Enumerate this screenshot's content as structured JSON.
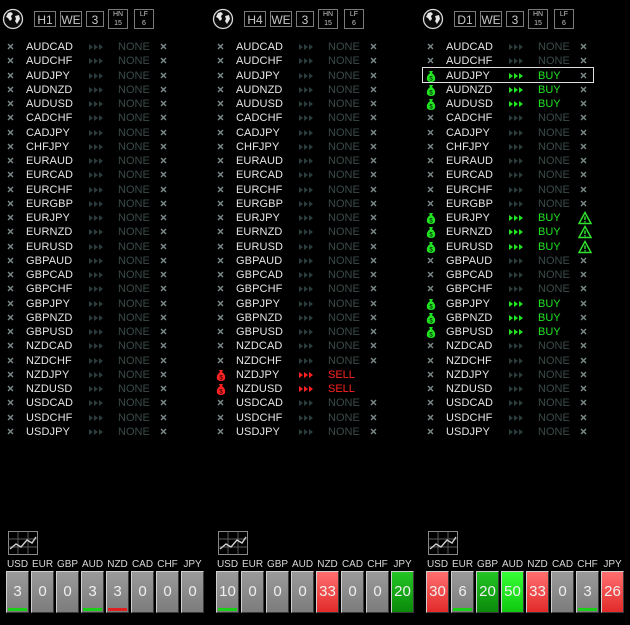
{
  "panels": [
    {
      "timeframe": "H1",
      "buttons": [
        "WE",
        "3"
      ],
      "hn": [
        "HN",
        "15"
      ],
      "lf": [
        "LF",
        "6"
      ],
      "rows": [
        {
          "pair": "AUDCAD",
          "signal": "NONE",
          "dir": "none"
        },
        {
          "pair": "AUDCHF",
          "signal": "NONE",
          "dir": "none"
        },
        {
          "pair": "AUDJPY",
          "signal": "NONE",
          "dir": "none"
        },
        {
          "pair": "AUDNZD",
          "signal": "NONE",
          "dir": "none"
        },
        {
          "pair": "AUDUSD",
          "signal": "NONE",
          "dir": "none"
        },
        {
          "pair": "CADCHF",
          "signal": "NONE",
          "dir": "none"
        },
        {
          "pair": "CADJPY",
          "signal": "NONE",
          "dir": "none"
        },
        {
          "pair": "CHFJPY",
          "signal": "NONE",
          "dir": "none"
        },
        {
          "pair": "EURAUD",
          "signal": "NONE",
          "dir": "none"
        },
        {
          "pair": "EURCAD",
          "signal": "NONE",
          "dir": "none"
        },
        {
          "pair": "EURCHF",
          "signal": "NONE",
          "dir": "none"
        },
        {
          "pair": "EURGBP",
          "signal": "NONE",
          "dir": "none"
        },
        {
          "pair": "EURJPY",
          "signal": "NONE",
          "dir": "none"
        },
        {
          "pair": "EURNZD",
          "signal": "NONE",
          "dir": "none"
        },
        {
          "pair": "EURUSD",
          "signal": "NONE",
          "dir": "none"
        },
        {
          "pair": "GBPAUD",
          "signal": "NONE",
          "dir": "none"
        },
        {
          "pair": "GBPCAD",
          "signal": "NONE",
          "dir": "none"
        },
        {
          "pair": "GBPCHF",
          "signal": "NONE",
          "dir": "none"
        },
        {
          "pair": "GBPJPY",
          "signal": "NONE",
          "dir": "none"
        },
        {
          "pair": "GBPNZD",
          "signal": "NONE",
          "dir": "none"
        },
        {
          "pair": "GBPUSD",
          "signal": "NONE",
          "dir": "none"
        },
        {
          "pair": "NZDCAD",
          "signal": "NONE",
          "dir": "none"
        },
        {
          "pair": "NZDCHF",
          "signal": "NONE",
          "dir": "none"
        },
        {
          "pair": "NZDJPY",
          "signal": "NONE",
          "dir": "none"
        },
        {
          "pair": "NZDUSD",
          "signal": "NONE",
          "dir": "none"
        },
        {
          "pair": "USDCAD",
          "signal": "NONE",
          "dir": "none"
        },
        {
          "pair": "USDCHF",
          "signal": "NONE",
          "dir": "none"
        },
        {
          "pair": "USDJPY",
          "signal": "NONE",
          "dir": "none"
        }
      ],
      "currencies": [
        {
          "code": "USD",
          "value": "3",
          "style": "gray",
          "bar": "green"
        },
        {
          "code": "EUR",
          "value": "0",
          "style": "gray",
          "bar": ""
        },
        {
          "code": "GBP",
          "value": "0",
          "style": "gray",
          "bar": ""
        },
        {
          "code": "AUD",
          "value": "3",
          "style": "gray",
          "bar": "green"
        },
        {
          "code": "NZD",
          "value": "3",
          "style": "gray",
          "bar": "red"
        },
        {
          "code": "CAD",
          "value": "0",
          "style": "gray",
          "bar": ""
        },
        {
          "code": "CHF",
          "value": "0",
          "style": "gray",
          "bar": ""
        },
        {
          "code": "JPY",
          "value": "0",
          "style": "gray",
          "bar": ""
        }
      ]
    },
    {
      "timeframe": "H4",
      "buttons": [
        "WE",
        "3"
      ],
      "hn": [
        "HN",
        "15"
      ],
      "lf": [
        "LF",
        "6"
      ],
      "rows": [
        {
          "pair": "AUDCAD",
          "signal": "NONE",
          "dir": "none"
        },
        {
          "pair": "AUDCHF",
          "signal": "NONE",
          "dir": "none"
        },
        {
          "pair": "AUDJPY",
          "signal": "NONE",
          "dir": "none"
        },
        {
          "pair": "AUDNZD",
          "signal": "NONE",
          "dir": "none"
        },
        {
          "pair": "AUDUSD",
          "signal": "NONE",
          "dir": "none"
        },
        {
          "pair": "CADCHF",
          "signal": "NONE",
          "dir": "none"
        },
        {
          "pair": "CADJPY",
          "signal": "NONE",
          "dir": "none"
        },
        {
          "pair": "CHFJPY",
          "signal": "NONE",
          "dir": "none"
        },
        {
          "pair": "EURAUD",
          "signal": "NONE",
          "dir": "none"
        },
        {
          "pair": "EURCAD",
          "signal": "NONE",
          "dir": "none"
        },
        {
          "pair": "EURCHF",
          "signal": "NONE",
          "dir": "none"
        },
        {
          "pair": "EURGBP",
          "signal": "NONE",
          "dir": "none"
        },
        {
          "pair": "EURJPY",
          "signal": "NONE",
          "dir": "none"
        },
        {
          "pair": "EURNZD",
          "signal": "NONE",
          "dir": "none"
        },
        {
          "pair": "EURUSD",
          "signal": "NONE",
          "dir": "none"
        },
        {
          "pair": "GBPAUD",
          "signal": "NONE",
          "dir": "none"
        },
        {
          "pair": "GBPCAD",
          "signal": "NONE",
          "dir": "none"
        },
        {
          "pair": "GBPCHF",
          "signal": "NONE",
          "dir": "none"
        },
        {
          "pair": "GBPJPY",
          "signal": "NONE",
          "dir": "none"
        },
        {
          "pair": "GBPNZD",
          "signal": "NONE",
          "dir": "none"
        },
        {
          "pair": "GBPUSD",
          "signal": "NONE",
          "dir": "none"
        },
        {
          "pair": "NZDCAD",
          "signal": "NONE",
          "dir": "none"
        },
        {
          "pair": "NZDCHF",
          "signal": "NONE",
          "dir": "none"
        },
        {
          "pair": "NZDJPY",
          "signal": "SELL",
          "dir": "sell"
        },
        {
          "pair": "NZDUSD",
          "signal": "SELL",
          "dir": "sell"
        },
        {
          "pair": "USDCAD",
          "signal": "NONE",
          "dir": "none"
        },
        {
          "pair": "USDCHF",
          "signal": "NONE",
          "dir": "none"
        },
        {
          "pair": "USDJPY",
          "signal": "NONE",
          "dir": "none"
        }
      ],
      "currencies": [
        {
          "code": "USD",
          "value": "10",
          "style": "gray",
          "bar": "green"
        },
        {
          "code": "EUR",
          "value": "0",
          "style": "gray",
          "bar": ""
        },
        {
          "code": "GBP",
          "value": "0",
          "style": "gray",
          "bar": ""
        },
        {
          "code": "AUD",
          "value": "0",
          "style": "gray",
          "bar": ""
        },
        {
          "code": "NZD",
          "value": "33",
          "style": "red",
          "bar": ""
        },
        {
          "code": "CAD",
          "value": "0",
          "style": "gray",
          "bar": ""
        },
        {
          "code": "CHF",
          "value": "0",
          "style": "gray",
          "bar": ""
        },
        {
          "code": "JPY",
          "value": "20",
          "style": "green",
          "bar": ""
        }
      ]
    },
    {
      "timeframe": "D1",
      "buttons": [
        "WE",
        "3"
      ],
      "hn": [
        "HN",
        "15"
      ],
      "lf": [
        "LF",
        "6"
      ],
      "selected_pair": "AUDJPY",
      "rows": [
        {
          "pair": "AUDCAD",
          "signal": "NONE",
          "dir": "none"
        },
        {
          "pair": "AUDCHF",
          "signal": "NONE",
          "dir": "none"
        },
        {
          "pair": "AUDJPY",
          "signal": "BUY",
          "dir": "buy"
        },
        {
          "pair": "AUDNZD",
          "signal": "BUY",
          "dir": "buy"
        },
        {
          "pair": "AUDUSD",
          "signal": "BUY",
          "dir": "buy"
        },
        {
          "pair": "CADCHF",
          "signal": "NONE",
          "dir": "none"
        },
        {
          "pair": "CADJPY",
          "signal": "NONE",
          "dir": "none"
        },
        {
          "pair": "CHFJPY",
          "signal": "NONE",
          "dir": "none"
        },
        {
          "pair": "EURAUD",
          "signal": "NONE",
          "dir": "none"
        },
        {
          "pair": "EURCAD",
          "signal": "NONE",
          "dir": "none"
        },
        {
          "pair": "EURCHF",
          "signal": "NONE",
          "dir": "none"
        },
        {
          "pair": "EURGBP",
          "signal": "NONE",
          "dir": "none"
        },
        {
          "pair": "EURJPY",
          "signal": "BUY",
          "dir": "buy",
          "warn": true
        },
        {
          "pair": "EURNZD",
          "signal": "BUY",
          "dir": "buy",
          "warn": true
        },
        {
          "pair": "EURUSD",
          "signal": "BUY",
          "dir": "buy",
          "warn": true
        },
        {
          "pair": "GBPAUD",
          "signal": "NONE",
          "dir": "none"
        },
        {
          "pair": "GBPCAD",
          "signal": "NONE",
          "dir": "none"
        },
        {
          "pair": "GBPCHF",
          "signal": "NONE",
          "dir": "none"
        },
        {
          "pair": "GBPJPY",
          "signal": "BUY",
          "dir": "buy"
        },
        {
          "pair": "GBPNZD",
          "signal": "BUY",
          "dir": "buy"
        },
        {
          "pair": "GBPUSD",
          "signal": "BUY",
          "dir": "buy"
        },
        {
          "pair": "NZDCAD",
          "signal": "NONE",
          "dir": "none"
        },
        {
          "pair": "NZDCHF",
          "signal": "NONE",
          "dir": "none"
        },
        {
          "pair": "NZDJPY",
          "signal": "NONE",
          "dir": "none"
        },
        {
          "pair": "NZDUSD",
          "signal": "NONE",
          "dir": "none"
        },
        {
          "pair": "USDCAD",
          "signal": "NONE",
          "dir": "none"
        },
        {
          "pair": "USDCHF",
          "signal": "NONE",
          "dir": "none"
        },
        {
          "pair": "USDJPY",
          "signal": "NONE",
          "dir": "none"
        }
      ],
      "currencies": [
        {
          "code": "USD",
          "value": "30",
          "style": "red",
          "bar": ""
        },
        {
          "code": "EUR",
          "value": "6",
          "style": "gray",
          "bar": "green"
        },
        {
          "code": "GBP",
          "value": "20",
          "style": "green",
          "bar": ""
        },
        {
          "code": "AUD",
          "value": "50",
          "style": "bright",
          "bar": ""
        },
        {
          "code": "NZD",
          "value": "33",
          "style": "red",
          "bar": ""
        },
        {
          "code": "CAD",
          "value": "0",
          "style": "gray",
          "bar": ""
        },
        {
          "code": "CHF",
          "value": "3",
          "style": "gray",
          "bar": "green"
        },
        {
          "code": "JPY",
          "value": "26",
          "style": "red",
          "bar": ""
        }
      ]
    }
  ],
  "colors": {
    "buy": "#22e322",
    "sell": "#ff2222",
    "none": "#3a4a4a",
    "x_icon": "#7c8c8c",
    "warning": "#2fe02f"
  }
}
